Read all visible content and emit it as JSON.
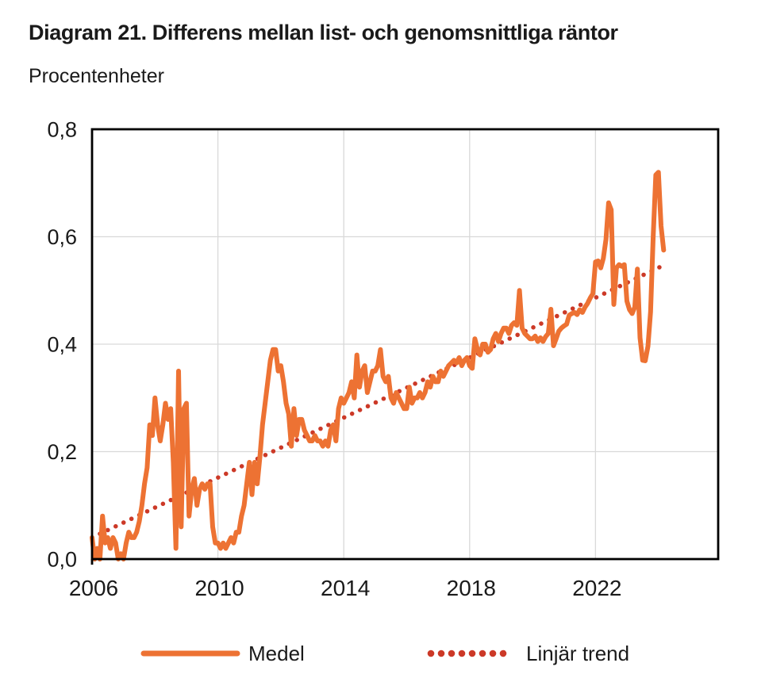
{
  "header": {
    "title": "Diagram 21. Differens mellan list- och genomsnittliga räntor",
    "subtitle": "Procentenheter"
  },
  "legend": {
    "medel_label": "Medel",
    "trend_label": "Linjär trend"
  },
  "colors": {
    "medel": "#ED7233",
    "trend": "#CC3927",
    "grid": "#D9D9D9",
    "frame": "#000000",
    "text": "#1a1a1a"
  },
  "chart_data": {
    "type": "line",
    "title": "Diagram 21. Differens mellan list- och genomsnittliga räntor",
    "ylabel": "Procentenheter",
    "grid": true,
    "legend_position": "bottom",
    "x_axis": {
      "range": [
        2006,
        2025.9
      ],
      "tick_values": [
        2006,
        2010,
        2014,
        2018,
        2022
      ],
      "tick_labels": [
        "2006",
        "2010",
        "2014",
        "2018",
        "2022"
      ]
    },
    "y_axis": {
      "range": [
        0,
        0.8
      ],
      "tick_values": [
        0,
        0.2,
        0.4,
        0.6,
        0.8
      ],
      "tick_labels": [
        "0,0",
        "0,2",
        "0,4",
        "0,6",
        "0,8"
      ]
    },
    "series": [
      {
        "name": "Medel",
        "style": "solid",
        "color": "#ED7233",
        "start_year": 2006,
        "frequency": "monthly",
        "values": [
          0.04,
          0.0,
          0.02,
          0.0,
          0.08,
          0.03,
          0.04,
          0.02,
          0.04,
          0.03,
          0.0,
          0.01,
          0.0,
          0.03,
          0.05,
          0.04,
          0.04,
          0.05,
          0.07,
          0.1,
          0.14,
          0.17,
          0.25,
          0.23,
          0.3,
          0.25,
          0.22,
          0.25,
          0.29,
          0.26,
          0.28,
          0.18,
          0.02,
          0.35,
          0.06,
          0.28,
          0.29,
          0.08,
          0.13,
          0.15,
          0.1,
          0.13,
          0.14,
          0.13,
          0.14,
          0.14,
          0.06,
          0.03,
          0.03,
          0.02,
          0.03,
          0.02,
          0.03,
          0.04,
          0.03,
          0.05,
          0.05,
          0.08,
          0.1,
          0.14,
          0.18,
          0.12,
          0.18,
          0.14,
          0.19,
          0.25,
          0.29,
          0.33,
          0.37,
          0.39,
          0.39,
          0.35,
          0.36,
          0.33,
          0.29,
          0.27,
          0.21,
          0.28,
          0.23,
          0.26,
          0.26,
          0.24,
          0.23,
          0.22,
          0.22,
          0.23,
          0.22,
          0.22,
          0.21,
          0.22,
          0.21,
          0.24,
          0.25,
          0.22,
          0.28,
          0.3,
          0.29,
          0.3,
          0.31,
          0.33,
          0.3,
          0.38,
          0.32,
          0.35,
          0.36,
          0.31,
          0.33,
          0.35,
          0.35,
          0.36,
          0.39,
          0.34,
          0.33,
          0.34,
          0.3,
          0.29,
          0.31,
          0.3,
          0.29,
          0.28,
          0.28,
          0.32,
          0.29,
          0.3,
          0.3,
          0.31,
          0.3,
          0.31,
          0.33,
          0.32,
          0.34,
          0.33,
          0.33,
          0.35,
          0.34,
          0.35,
          0.36,
          0.365,
          0.37,
          0.365,
          0.375,
          0.36,
          0.37,
          0.375,
          0.36,
          0.355,
          0.41,
          0.39,
          0.38,
          0.4,
          0.4,
          0.385,
          0.39,
          0.41,
          0.42,
          0.405,
          0.42,
          0.43,
          0.43,
          0.42,
          0.435,
          0.44,
          0.435,
          0.5,
          0.43,
          0.42,
          0.415,
          0.41,
          0.41,
          0.415,
          0.405,
          0.412,
          0.405,
          0.414,
          0.42,
          0.465,
          0.397,
          0.41,
          0.424,
          0.43,
          0.434,
          0.437,
          0.454,
          0.457,
          0.459,
          0.455,
          0.464,
          0.459,
          0.469,
          0.476,
          0.486,
          0.494,
          0.553,
          0.555,
          0.542,
          0.56,
          0.595,
          0.663,
          0.65,
          0.474,
          0.542,
          0.548,
          0.545,
          0.548,
          0.48,
          0.464,
          0.457,
          0.469,
          0.54,
          0.412,
          0.37,
          0.369,
          0.396,
          0.46,
          0.6,
          0.715,
          0.72,
          0.62,
          0.575
        ]
      },
      {
        "name": "Linjär trend",
        "style": "dotted",
        "color": "#CC3927",
        "points": [
          {
            "x": 2006.0,
            "y": 0.04
          },
          {
            "x": 2024.1,
            "y": 0.545
          }
        ]
      }
    ]
  }
}
